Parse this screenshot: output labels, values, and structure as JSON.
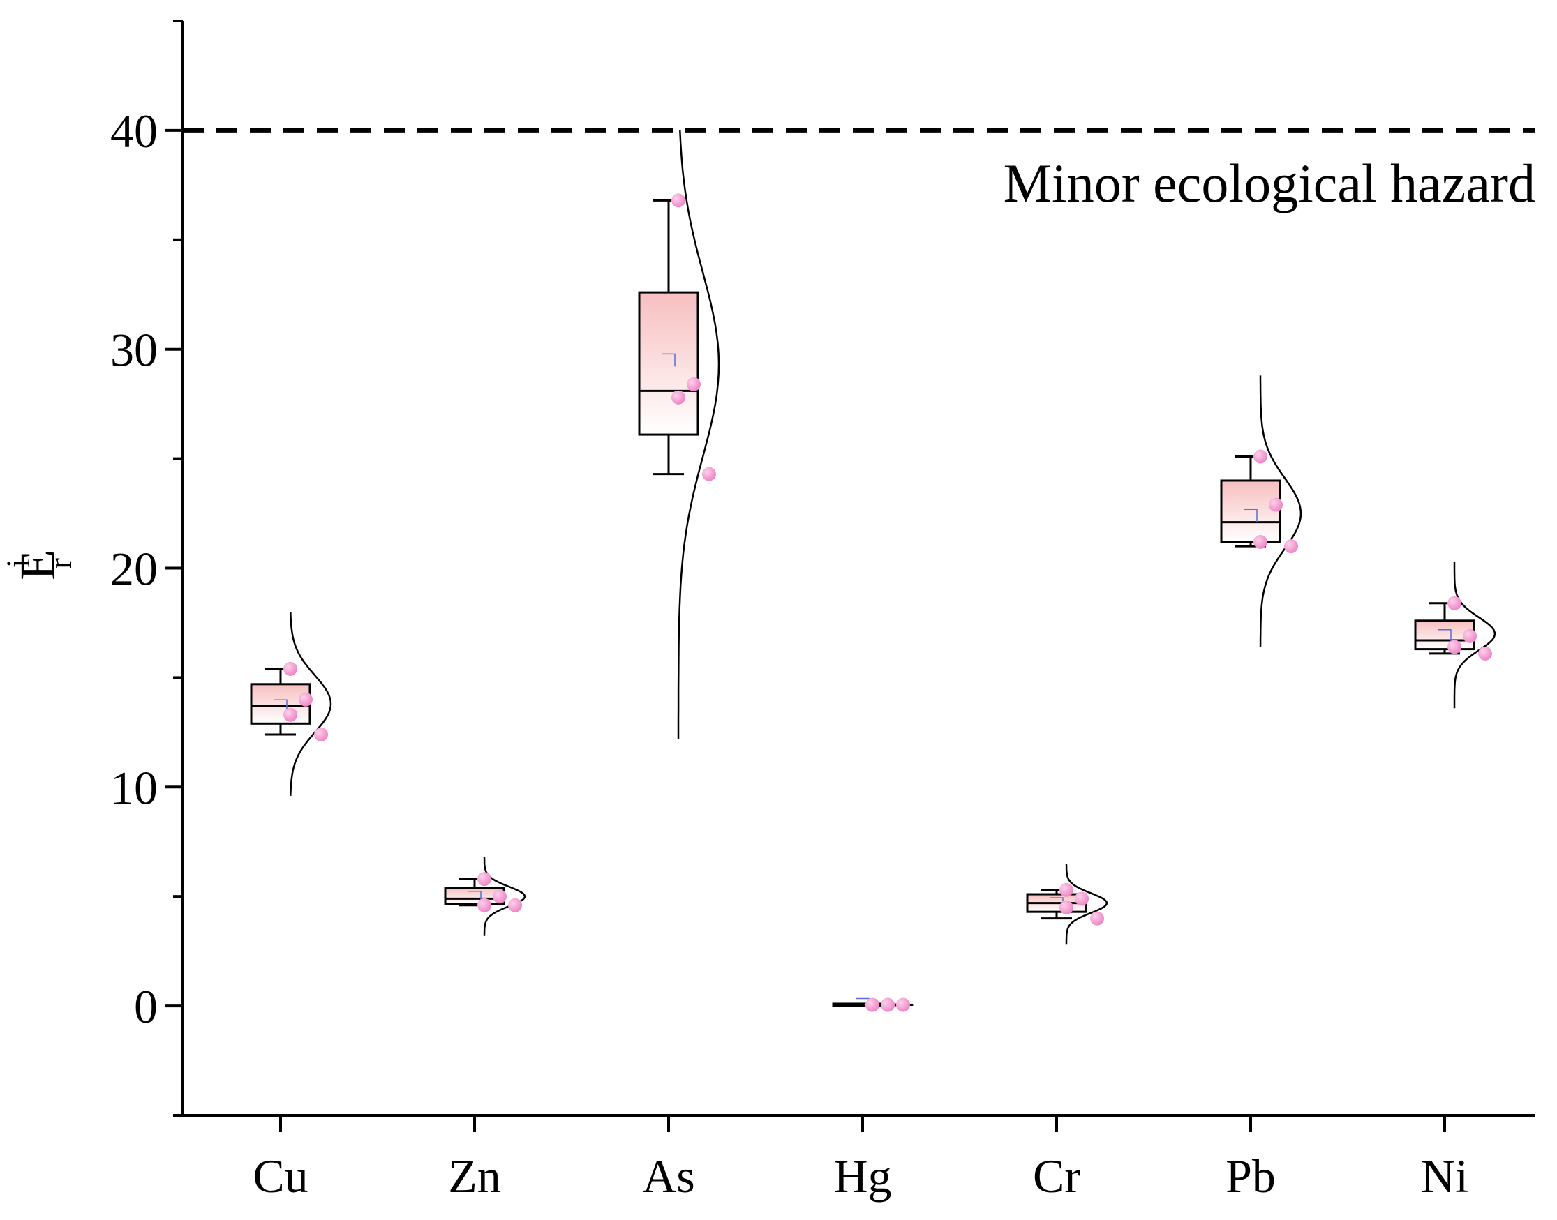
{
  "chart_data": {
    "type": "box",
    "ylabel": {
      "main": "E",
      "sup": "i",
      "sub": "r"
    },
    "ylim": [
      -5,
      45
    ],
    "yticks": [
      0,
      10,
      20,
      30,
      40
    ],
    "categories": [
      "Cu",
      "Zn",
      "As",
      "Hg",
      "Cr",
      "Pb",
      "Ni"
    ],
    "threshold": {
      "value": 40,
      "label": "Minor ecological hazard",
      "style": "dashed"
    },
    "boxes": [
      {
        "category": "Cu",
        "min": 12.4,
        "q1": 12.9,
        "median": 13.7,
        "q3": 14.7,
        "max": 15.4,
        "mean": 13.7,
        "points": [
          15.4,
          14.0,
          13.3,
          12.4
        ],
        "dist_mean": 13.8,
        "dist_sd": 1.3,
        "dist_range": [
          9.6,
          18.0
        ]
      },
      {
        "category": "Zn",
        "min": 4.6,
        "q1": 4.65,
        "median": 4.9,
        "q3": 5.4,
        "max": 5.8,
        "mean": 4.95,
        "points": [
          5.8,
          5.0,
          4.6,
          4.6
        ],
        "dist_mean": 5.0,
        "dist_sd": 0.45,
        "dist_range": [
          3.2,
          6.8
        ]
      },
      {
        "category": "As",
        "min": 24.3,
        "q1": 26.1,
        "median": 28.1,
        "q3": 32.6,
        "max": 36.8,
        "mean": 29.5,
        "points": [
          36.8,
          28.4,
          27.8,
          24.3
        ],
        "dist_mean": 29.3,
        "dist_sd": 4.2,
        "dist_range": [
          12.2,
          40.0
        ]
      },
      {
        "category": "Hg",
        "min": 0.0,
        "q1": 0.0,
        "median": 0.05,
        "q3": 0.1,
        "max": 0.1,
        "mean": 0.05,
        "points": [
          0.05,
          0.05,
          0.05,
          0.05
        ],
        "dist_mean": 0.05,
        "dist_sd": 0.02,
        "dist_range": [
          0.0,
          0.1
        ]
      },
      {
        "category": "Cr",
        "min": 4.0,
        "q1": 4.3,
        "median": 4.7,
        "q3": 5.1,
        "max": 5.3,
        "mean": 4.65,
        "points": [
          5.3,
          4.9,
          4.5,
          4.0
        ],
        "dist_mean": 4.7,
        "dist_sd": 0.45,
        "dist_range": [
          2.8,
          6.5
        ]
      },
      {
        "category": "Pb",
        "min": 21.0,
        "q1": 21.2,
        "median": 22.1,
        "q3": 24.0,
        "max": 25.1,
        "mean": 22.4,
        "points": [
          25.1,
          22.9,
          21.2,
          21.0
        ],
        "dist_mean": 22.5,
        "dist_sd": 1.6,
        "dist_range": [
          16.4,
          28.8
        ]
      },
      {
        "category": "Ni",
        "min": 16.1,
        "q1": 16.3,
        "median": 16.7,
        "q3": 17.6,
        "max": 18.4,
        "mean": 16.9,
        "points": [
          18.4,
          16.9,
          16.4,
          16.1
        ],
        "dist_mean": 17.0,
        "dist_sd": 0.75,
        "dist_range": [
          13.6,
          20.3
        ]
      }
    ],
    "colors": {
      "box_fill_top": "#f7bfc0",
      "box_fill_bottom": "#ffffff",
      "point": "#ee82c4",
      "point_highlight": "#fbd2ea",
      "mean_marker": "#5a6fd1",
      "line": "#000000"
    }
  }
}
